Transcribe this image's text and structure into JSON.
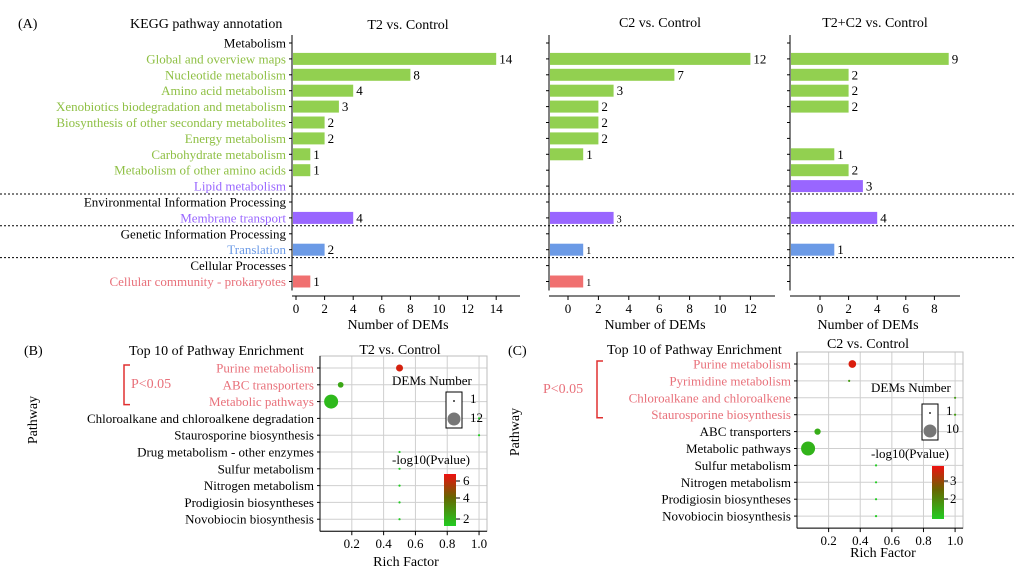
{
  "panel_a": {
    "tag": "(A)",
    "header": "KEGG pathway annotation",
    "rows": [
      {
        "label": "Metabolism",
        "kind": "section"
      },
      {
        "label": "Global and overview maps",
        "kind": "item",
        "color": "green"
      },
      {
        "label": "Nucleotide metabolism",
        "kind": "item",
        "color": "green"
      },
      {
        "label": "Amino acid metabolism",
        "kind": "item",
        "color": "green"
      },
      {
        "label": "Xenobiotics biodegradation and metabolism",
        "kind": "item",
        "color": "green"
      },
      {
        "label": "Biosynthesis of other secondary metabolites",
        "kind": "item",
        "color": "green"
      },
      {
        "label": "Energy metabolism",
        "kind": "item",
        "color": "green"
      },
      {
        "label": "Carbohydrate metabolism",
        "kind": "item",
        "color": "green"
      },
      {
        "label": "Metabolism of other amino acids",
        "kind": "item",
        "color": "green"
      },
      {
        "label": "Lipid metabolism",
        "kind": "item",
        "color": "purple"
      },
      {
        "label": "Environmental Information Processing",
        "kind": "section"
      },
      {
        "label": "Membrane transport",
        "kind": "item",
        "color": "purple"
      },
      {
        "label": "Genetic Information Processing",
        "kind": "section"
      },
      {
        "label": "Translation",
        "kind": "item",
        "color": "blue"
      },
      {
        "label": "Cellular Processes",
        "kind": "section"
      },
      {
        "label": "Cellular community - prokaryotes",
        "kind": "item",
        "color": "red"
      }
    ]
  },
  "colors": {
    "green": "#92d050",
    "purple": "#9966ff",
    "blue": "#6b9ae6",
    "red": "#f07070",
    "text_green": "#8fc045",
    "text_purple": "#9966ff",
    "text_blue": "#6b9ae6",
    "text_red": "#e8707a",
    "dot_green": "#22cc22",
    "dot_red": "#ee1111"
  },
  "chart_data": [
    {
      "type": "bar",
      "title": "T2  vs.  Control",
      "xlabel": "Number of DEMs",
      "xlim": [
        0,
        15
      ],
      "xticks": [
        "0",
        "2",
        "4",
        "6",
        "8",
        "10",
        "12",
        "14"
      ],
      "categories": [
        "Global and overview maps",
        "Nucleotide metabolism",
        "Amino acid metabolism",
        "Xenobiotics biodegradation and metabolism",
        "Biosynthesis of other secondary metabolites",
        "Energy metabolism",
        "Carbohydrate metabolism",
        "Metabolism of other amino acids",
        "Lipid metabolism",
        "Membrane transport",
        "Translation",
        "Cellular community - prokaryotes"
      ],
      "values": [
        14,
        8,
        4,
        3,
        2,
        2,
        1,
        1,
        null,
        4,
        2,
        1
      ],
      "labels": [
        "14",
        "8",
        "4",
        "3",
        "2",
        "2",
        "1",
        "1",
        "",
        "4",
        "2",
        "1"
      ]
    },
    {
      "type": "bar",
      "title": "C2  vs.  Control",
      "xlabel": "Number of DEMs",
      "xlim": [
        -1.5,
        13.5
      ],
      "xticks": [
        "0",
        "2",
        "4",
        "6",
        "8",
        "10",
        "12"
      ],
      "categories": [
        "Global and overview maps",
        "Nucleotide metabolism",
        "Amino acid metabolism",
        "Xenobiotics biodegradation and metabolism",
        "Biosynthesis of other secondary metabolites",
        "Energy metabolism",
        "Carbohydrate metabolism",
        "Metabolism of other amino acids",
        "Lipid metabolism",
        "Membrane transport",
        "Translation",
        "Cellular community - prokaryotes"
      ],
      "values": [
        12,
        7,
        3,
        2,
        2,
        2,
        1,
        null,
        null,
        3,
        1,
        1
      ],
      "labels": [
        "12",
        "7",
        "3",
        "2",
        "2",
        "2",
        "1",
        "",
        "",
        "3",
        "1",
        "1"
      ]
    },
    {
      "type": "bar",
      "title": "T2+C2 vs.  Control",
      "xlabel": "Number of DEMs",
      "xlim": [
        -2.2,
        10
      ],
      "xticks": [
        "0",
        "2",
        "4",
        "6",
        "8"
      ],
      "categories": [
        "Global and overview maps",
        "Nucleotide metabolism",
        "Amino acid metabolism",
        "Xenobiotics biodegradation and metabolism",
        "Biosynthesis of other secondary metabolites",
        "Energy metabolism",
        "Carbohydrate metabolism",
        "Metabolism of other amino acids",
        "Lipid metabolism",
        "Membrane transport",
        "Translation",
        "Cellular community - prokaryotes"
      ],
      "values": [
        9,
        2,
        2,
        2,
        null,
        null,
        1,
        2,
        3,
        4,
        1,
        null
      ],
      "labels": [
        "9",
        "2",
        "2",
        "2",
        "",
        "",
        "1",
        "2",
        "3",
        "4",
        "1",
        ""
      ]
    },
    {
      "type": "scatter",
      "tag": "(B)",
      "header": "Top 10 of Pathway Enrichment",
      "title": "T2  vs.  Control",
      "xlabel": "Rich Factor",
      "ylabel": "Pathway",
      "xlim": [
        0,
        1.05
      ],
      "xticks": [
        "0.2",
        "0.4",
        "0.6",
        "0.8",
        "1.0"
      ],
      "bracket_label": "P<0.05",
      "significant_count": 3,
      "categories": [
        "Purine metabolism",
        "ABC transporters",
        "Metabolic pathways",
        "Chloroalkane and chloroalkene degradation",
        "Staurosporine biosynthesis",
        "Drug metabolism - other enzymes",
        "Sulfur metabolism",
        "Nitrogen metabolism",
        "Prodigiosin biosyntheses",
        "Novobiocin biosynthesis"
      ],
      "points": [
        {
          "x": 0.5,
          "size": 3,
          "neglog10p": 6.5
        },
        {
          "x": 0.13,
          "size": 2,
          "neglog10p": 2.2
        },
        {
          "x": 0.07,
          "size": 12,
          "neglog10p": 1.6
        },
        {
          "x": 1.0,
          "size": 1,
          "neglog10p": 1.0
        },
        {
          "x": 1.0,
          "size": 1,
          "neglog10p": 1.0
        },
        {
          "x": 0.5,
          "size": 1,
          "neglog10p": 1.0
        },
        {
          "x": 0.5,
          "size": 1,
          "neglog10p": 1.0
        },
        {
          "x": 0.5,
          "size": 1,
          "neglog10p": 1.0
        },
        {
          "x": 0.5,
          "size": 1,
          "neglog10p": 1.0
        },
        {
          "x": 0.5,
          "size": 1,
          "neglog10p": 1.0
        }
      ],
      "size_legend_title": "DEMs Number",
      "size_legend": [
        "1",
        "12"
      ],
      "color_legend_title": "-log10(Pvalue)",
      "color_legend_ticks": [
        "6",
        "4",
        "2"
      ],
      "color_range": [
        1,
        7
      ]
    },
    {
      "type": "scatter",
      "tag": "(C)",
      "header": "Top 10 of Pathway Enrichment",
      "title": "C2  vs.  Control",
      "xlabel": "Rich Factor",
      "ylabel": "Pathway",
      "xlim": [
        0,
        1.05
      ],
      "xticks": [
        "0.2",
        "0.4",
        "0.6",
        "0.8",
        "1.0"
      ],
      "bracket_label": "P<0.05",
      "significant_count": 4,
      "categories": [
        "Purine metabolism",
        "Pyrimidine metabolism",
        "Chloroalkane and chloroalkene",
        "Staurosporine biosynthesis",
        "ABC transporters",
        "Metabolic pathways",
        "Sulfur metabolism",
        "Nitrogen metabolism",
        "Prodigiosin biosyntheses",
        "Novobiocin biosynthesis"
      ],
      "points": [
        {
          "x": 0.35,
          "size": 3,
          "neglog10p": 3.8
        },
        {
          "x": 0.33,
          "size": 1,
          "neglog10p": 1.8
        },
        {
          "x": 1.0,
          "size": 1,
          "neglog10p": 1.8
        },
        {
          "x": 1.0,
          "size": 1,
          "neglog10p": 1.8
        },
        {
          "x": 0.13,
          "size": 2,
          "neglog10p": 1.5
        },
        {
          "x": 0.07,
          "size": 10,
          "neglog10p": 1.4
        },
        {
          "x": 0.5,
          "size": 1,
          "neglog10p": 1.0
        },
        {
          "x": 0.5,
          "size": 1,
          "neglog10p": 1.0
        },
        {
          "x": 0.5,
          "size": 1,
          "neglog10p": 1.0
        },
        {
          "x": 0.5,
          "size": 1,
          "neglog10p": 1.0
        }
      ],
      "size_legend_title": "DEMs Number",
      "size_legend": [
        "1",
        "10"
      ],
      "color_legend_title": "-log10(Pvalue)",
      "color_legend_ticks": [
        "3",
        "2"
      ],
      "color_range": [
        1,
        4
      ]
    }
  ]
}
